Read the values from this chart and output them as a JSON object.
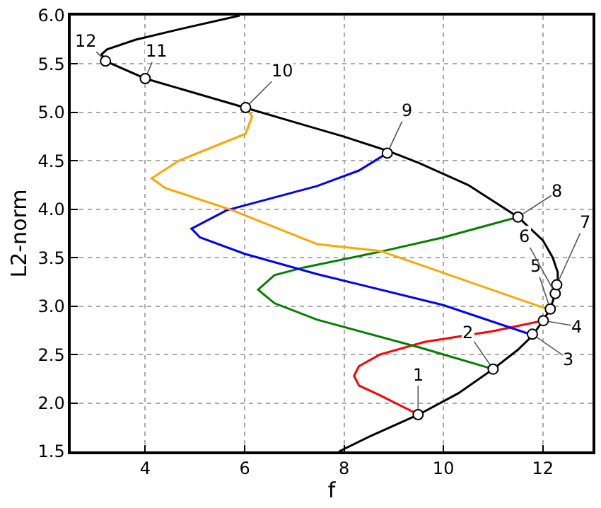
{
  "chart_data": {
    "type": "line",
    "xlabel": "f",
    "ylabel": "L2-norm",
    "xlim": [
      2.5,
      13
    ],
    "ylim": [
      1.5,
      6.0
    ],
    "xticks": [
      4,
      6,
      8,
      10,
      12
    ],
    "yticks": [
      1.5,
      {
        "value": 2,
        "label": "2.0"
      },
      2.5,
      {
        "value": 3,
        "label": "3.0"
      },
      3.5,
      {
        "value": 4,
        "label": "4.0"
      },
      4.5,
      {
        "value": 5,
        "label": "5.0"
      },
      5.5,
      {
        "value": 6,
        "label": "6.0"
      }
    ],
    "grid": true,
    "line_style": "solid",
    "series": [
      {
        "color": "#000000",
        "marker": "none",
        "x": [
          7.9,
          8.5,
          9.5,
          10.3,
          11.0,
          11.5,
          11.8,
          12.0,
          12.15,
          12.25,
          12.3,
          12.3,
          12.2,
          12.0,
          11.5,
          10.5,
          9.5,
          8.9,
          8.0,
          7.0,
          6.0,
          5.0,
          4.0,
          3.2,
          3.12,
          3.23,
          3.8,
          4.7,
          5.9
        ],
        "values": [
          1.5,
          1.65,
          1.88,
          2.1,
          2.35,
          2.55,
          2.7,
          2.85,
          2.97,
          3.13,
          3.25,
          3.35,
          3.5,
          3.68,
          3.92,
          4.25,
          4.48,
          4.6,
          4.75,
          4.9,
          5.05,
          5.2,
          5.35,
          5.53,
          5.6,
          5.65,
          5.75,
          5.86,
          6.0
        ]
      },
      {
        "type": "line",
        "color": "#ff0000",
        "marker": "none",
        "x": [
          9.5,
          8.72,
          8.3,
          8.2,
          8.3,
          8.72,
          9.62,
          10.98,
          12.0
        ],
        "values": [
          1.88,
          2.08,
          2.18,
          2.28,
          2.38,
          2.5,
          2.63,
          2.74,
          2.85
        ]
      },
      {
        "type": "line",
        "color": "#008000",
        "marker": "none",
        "x": [
          11.0,
          9.54,
          7.46,
          6.6,
          6.27,
          6.6,
          7.2,
          8.8,
          10.0,
          11.5
        ],
        "values": [
          2.35,
          2.57,
          2.86,
          3.03,
          3.17,
          3.32,
          3.4,
          3.57,
          3.71,
          3.92
        ]
      },
      {
        "type": "line",
        "color": "#0000ff",
        "marker": "none",
        "x": [
          11.8,
          10.0,
          7.46,
          6.0,
          5.1,
          4.93,
          5.64,
          7.46,
          8.3,
          8.87
        ],
        "values": [
          2.7,
          3.01,
          3.33,
          3.54,
          3.71,
          3.8,
          3.99,
          4.24,
          4.4,
          4.58
        ]
      },
      {
        "type": "line",
        "color": "#ffa500",
        "marker": "none",
        "x": [
          12.15,
          11.98,
          8.73,
          7.46,
          5.75,
          4.4,
          4.13,
          4.67,
          6.02,
          6.15,
          6.02
        ],
        "values": [
          2.97,
          2.99,
          3.57,
          3.64,
          3.99,
          4.22,
          4.32,
          4.5,
          4.78,
          4.96,
          5.05
        ]
      },
      {
        "type": "scatter",
        "color": "#000000",
        "marker": "circle",
        "x": [
          9.49,
          11.0,
          11.79,
          12.01,
          12.15,
          12.25,
          12.28,
          11.5,
          8.87,
          6.02,
          4.0,
          3.2
        ],
        "values": [
          1.88,
          2.35,
          2.71,
          2.85,
          2.97,
          3.13,
          3.22,
          3.92,
          4.58,
          5.05,
          5.35,
          5.53
        ]
      }
    ],
    "annotations": [
      {
        "text": "1",
        "x": 9.49,
        "y": 1.88
      },
      {
        "text": "2",
        "x": 11.0,
        "y": 2.35
      },
      {
        "text": "3",
        "x": 11.79,
        "y": 2.71
      },
      {
        "text": "4",
        "x": 12.01,
        "y": 2.85
      },
      {
        "text": "5",
        "x": 12.15,
        "y": 2.97
      },
      {
        "text": "6",
        "x": 12.25,
        "y": 3.13
      },
      {
        "text": "7",
        "x": 12.28,
        "y": 3.22
      },
      {
        "text": "8",
        "x": 11.5,
        "y": 3.92
      },
      {
        "text": "9",
        "x": 8.87,
        "y": 4.58
      },
      {
        "text": "10",
        "x": 6.02,
        "y": 5.05
      },
      {
        "text": "11",
        "x": 4.0,
        "y": 5.35
      },
      {
        "text": "12",
        "x": 3.2,
        "y": 5.53
      }
    ]
  }
}
